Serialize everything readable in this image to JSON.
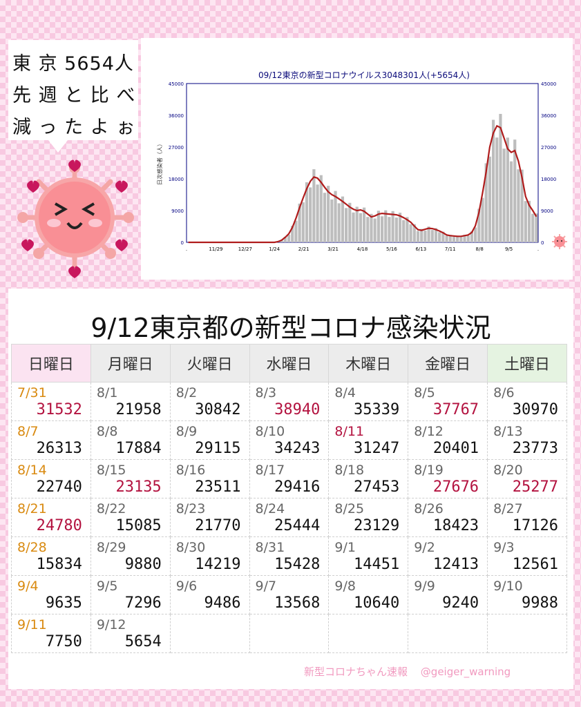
{
  "bubble": {
    "line1": "東 京 5654人",
    "line2": "先 週 と 比 べ",
    "line3": "減 っ た よ ぉ"
  },
  "chart_data": {
    "type": "bar",
    "title": "09/12東京の新型コロナウイルス3048301人(+5654人)",
    "ylabel": "日次感染者（人）",
    "ylim": [
      0,
      45000
    ],
    "yticks": [
      "0",
      "9000",
      "18000",
      "27000",
      "36000",
      "45000"
    ],
    "xtick_labels": [
      ".",
      "11/29",
      "12/27",
      "1/24",
      "2/21",
      "3/21",
      "4/18",
      "5/16",
      "6/13",
      "7/11",
      "8/8",
      "9/5",
      "."
    ],
    "series": [
      {
        "values_weekly": [
          0,
          0,
          0,
          0,
          0,
          0,
          0,
          0,
          0,
          0,
          0,
          0,
          0,
          0,
          0,
          0,
          0,
          0,
          0,
          0,
          0,
          0,
          0,
          0,
          0,
          200,
          600,
          1400,
          2400,
          4200,
          6800,
          9800,
          12600,
          15200,
          17300,
          18500,
          18200,
          17000,
          15600,
          14300,
          13500,
          13000,
          12300,
          11600,
          10800,
          10000,
          9400,
          9000,
          9200,
          8800,
          8000,
          7200,
          7500,
          8000,
          8200,
          8100,
          8000,
          7900,
          7800,
          7500,
          7000,
          6400,
          5700,
          4600,
          3600,
          3400,
          3700,
          4000,
          3900,
          3600,
          3200,
          2700,
          2100,
          1900,
          1800,
          1700,
          1700,
          1900,
          2100,
          2800,
          4700,
          8500,
          14000,
          20000,
          27000,
          31000,
          33000,
          32500,
          29500,
          26500,
          25500,
          26000,
          23000,
          18400,
          13000,
          10500,
          9000,
          7300
        ]
      }
    ],
    "line_color": "#b01c1c",
    "bar_color": "#bdbdbd"
  },
  "table": {
    "title": "9/12東京都の新型コロナ感染状況",
    "headers": [
      "日曜日",
      "月曜日",
      "火曜日",
      "水曜日",
      "木曜日",
      "金曜日",
      "土曜日"
    ],
    "rows": [
      [
        {
          "d": "7/31",
          "v": "31532",
          "dc": "org",
          "vc": "red"
        },
        {
          "d": "8/1",
          "v": "21958"
        },
        {
          "d": "8/2",
          "v": "30842"
        },
        {
          "d": "8/3",
          "v": "38940",
          "vc": "red"
        },
        {
          "d": "8/4",
          "v": "35339"
        },
        {
          "d": "8/5",
          "v": "37767",
          "vc": "red"
        },
        {
          "d": "8/6",
          "v": "30970"
        }
      ],
      [
        {
          "d": "8/7",
          "v": "26313",
          "dc": "org"
        },
        {
          "d": "8/8",
          "v": "17884"
        },
        {
          "d": "8/9",
          "v": "29115"
        },
        {
          "d": "8/10",
          "v": "34243"
        },
        {
          "d": "8/11",
          "v": "31247",
          "dc": "red"
        },
        {
          "d": "8/12",
          "v": "20401"
        },
        {
          "d": "8/13",
          "v": "23773"
        }
      ],
      [
        {
          "d": "8/14",
          "v": "22740",
          "dc": "org"
        },
        {
          "d": "8/15",
          "v": "23135",
          "vc": "red"
        },
        {
          "d": "8/16",
          "v": "23511"
        },
        {
          "d": "8/17",
          "v": "29416"
        },
        {
          "d": "8/18",
          "v": "27453"
        },
        {
          "d": "8/19",
          "v": "27676",
          "vc": "red"
        },
        {
          "d": "8/20",
          "v": "25277",
          "vc": "red"
        }
      ],
      [
        {
          "d": "8/21",
          "v": "24780",
          "dc": "org",
          "vc": "red"
        },
        {
          "d": "8/22",
          "v": "15085"
        },
        {
          "d": "8/23",
          "v": "21770"
        },
        {
          "d": "8/24",
          "v": "25444"
        },
        {
          "d": "8/25",
          "v": "23129"
        },
        {
          "d": "8/26",
          "v": "18423"
        },
        {
          "d": "8/27",
          "v": "17126"
        }
      ],
      [
        {
          "d": "8/28",
          "v": "15834",
          "dc": "org"
        },
        {
          "d": "8/29",
          "v": "9880"
        },
        {
          "d": "8/30",
          "v": "14219"
        },
        {
          "d": "8/31",
          "v": "15428"
        },
        {
          "d": "9/1",
          "v": "14451"
        },
        {
          "d": "9/2",
          "v": "12413"
        },
        {
          "d": "9/3",
          "v": "12561"
        }
      ],
      [
        {
          "d": "9/4",
          "v": "9635",
          "dc": "org"
        },
        {
          "d": "9/5",
          "v": "7296"
        },
        {
          "d": "9/6",
          "v": "9486"
        },
        {
          "d": "9/7",
          "v": "13568"
        },
        {
          "d": "9/8",
          "v": "10640"
        },
        {
          "d": "9/9",
          "v": "9240"
        },
        {
          "d": "9/10",
          "v": "9988"
        }
      ],
      [
        {
          "d": "9/11",
          "v": "7750",
          "dc": "org"
        },
        {
          "d": "9/12",
          "v": "5654"
        },
        {},
        {},
        {},
        {},
        {}
      ]
    ]
  },
  "footer": {
    "brand": "新型コロナちゃん速報",
    "handle": "@geiger_warning"
  }
}
